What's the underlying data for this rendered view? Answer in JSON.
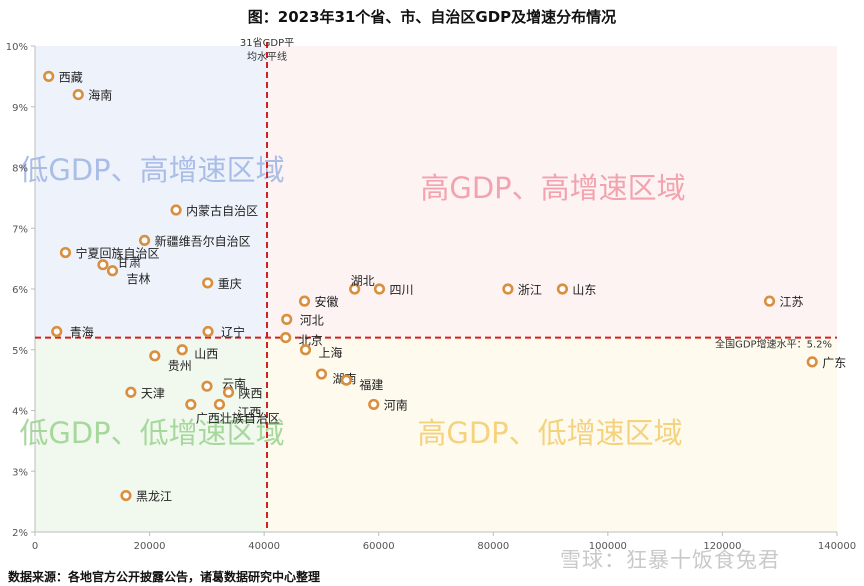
{
  "title": "图：2023年31个省、市、自治区GDP及增速分布情况",
  "source": "数据来源：各地官方公开披露公告，诸葛数据研究中心整理",
  "watermark": "雪球：狂暴十饭食兔君",
  "chart_data": {
    "type": "scatter",
    "title": "图：2023年31个省、市、自治区GDP及增速分布情况",
    "xlabel": "",
    "ylabel": "",
    "xlim": [
      0,
      140000
    ],
    "ylim": [
      2,
      10
    ],
    "x_ticks": [
      "0",
      "20000",
      "40000",
      "60000",
      "80000",
      "100000",
      "120000",
      "140000"
    ],
    "y_ticks": [
      "2%",
      "3%",
      "4%",
      "5%",
      "6%",
      "7%",
      "8%",
      "9%",
      "10%"
    ],
    "grid": false,
    "vline": {
      "x": 40500,
      "label": "31省GDP平均水平线"
    },
    "hline": {
      "y": 5.2,
      "label": "全国GDP增速水平：5.2%"
    },
    "quadrants": [
      {
        "label": "低GDP、高增速区域",
        "color": "#eef3fb"
      },
      {
        "label": "高GDP、高增速区域",
        "color": "#fdf3f3"
      },
      {
        "label": "低GDP、低增速区域",
        "color": "#f1f8ee"
      },
      {
        "label": "高GDP、低增速区域",
        "color": "#fefbee"
      }
    ],
    "colors": {
      "marker": "#d98f3e",
      "divider": "#d42020"
    },
    "points": [
      {
        "name": "西藏",
        "x": 2393,
        "y": 9.5
      },
      {
        "name": "海南",
        "x": 7551,
        "y": 9.2
      },
      {
        "name": "内蒙古自治区",
        "x": 24627,
        "y": 7.3
      },
      {
        "name": "新疆维吾尔自治区",
        "x": 19126,
        "y": 6.8
      },
      {
        "name": "宁夏回族自治区",
        "x": 5315,
        "y": 6.6
      },
      {
        "name": "甘肃",
        "x": 11864,
        "y": 6.4
      },
      {
        "name": "吉林",
        "x": 13531,
        "y": 6.3
      },
      {
        "name": "重庆",
        "x": 30146,
        "y": 6.1
      },
      {
        "name": "青海",
        "x": 3799,
        "y": 5.3
      },
      {
        "name": "辽宁",
        "x": 30209,
        "y": 5.3
      },
      {
        "name": "山西",
        "x": 25698,
        "y": 5.0
      },
      {
        "name": "贵州",
        "x": 20913,
        "y": 4.9
      },
      {
        "name": "天津",
        "x": 16737,
        "y": 4.3
      },
      {
        "name": "云南",
        "x": 30021,
        "y": 4.4
      },
      {
        "name": "陕西",
        "x": 33786,
        "y": 4.3
      },
      {
        "name": "广西壮族自治区",
        "x": 27202,
        "y": 4.1
      },
      {
        "name": "江西",
        "x": 32200,
        "y": 4.1
      },
      {
        "name": "黑龙江",
        "x": 15884,
        "y": 2.6
      },
      {
        "name": "湖北",
        "x": 55803,
        "y": 6.0
      },
      {
        "name": "四川",
        "x": 60133,
        "y": 6.0
      },
      {
        "name": "安徽",
        "x": 47051,
        "y": 5.8
      },
      {
        "name": "河北",
        "x": 43944,
        "y": 5.5
      },
      {
        "name": "北京",
        "x": 43761,
        "y": 5.2
      },
      {
        "name": "上海",
        "x": 47219,
        "y": 5.0
      },
      {
        "name": "湖南",
        "x": 50013,
        "y": 4.6
      },
      {
        "name": "福建",
        "x": 54355,
        "y": 4.5
      },
      {
        "name": "河南",
        "x": 59132,
        "y": 4.1
      },
      {
        "name": "浙江",
        "x": 82553,
        "y": 6.0
      },
      {
        "name": "山东",
        "x": 92069,
        "y": 6.0
      },
      {
        "name": "江苏",
        "x": 128222,
        "y": 5.8
      },
      {
        "name": "广东",
        "x": 135673,
        "y": 4.8
      }
    ]
  }
}
